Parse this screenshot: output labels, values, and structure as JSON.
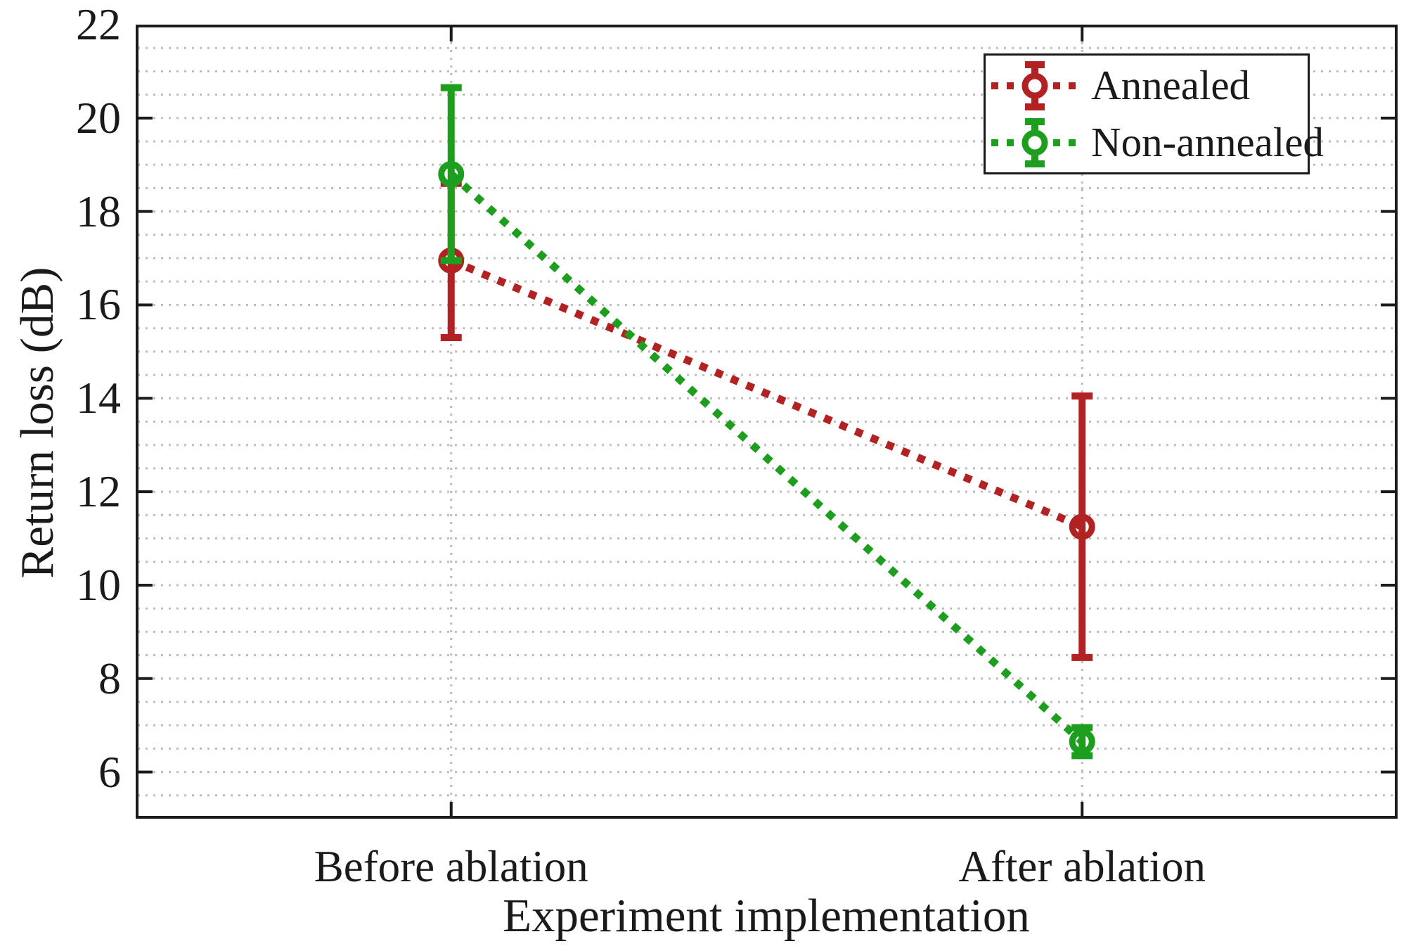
{
  "chart_data": {
    "type": "line",
    "subtype": "errorbar-line",
    "title": "",
    "xlabel": "Experiment implementation",
    "ylabel": "Return loss (dB)",
    "categories": [
      "Before ablation",
      "After ablation"
    ],
    "xlim": [
      0.5,
      2.5
    ],
    "x_positions": [
      1,
      2
    ],
    "ylim": [
      5,
      22
    ],
    "y_major_ticks": [
      6,
      8,
      10,
      12,
      14,
      16,
      18,
      20,
      22
    ],
    "y_minor_grid_start": 5.5,
    "y_minor_grid_step": 0.5,
    "y_minor_grid_end": 21.5,
    "grid": "dotted horizontal minor gridlines every 0.5 dB; dotted vertical gridlines at category positions",
    "legend_position": "top-right",
    "series": [
      {
        "name": "Annealed",
        "color": "#B22222",
        "linestyle": "dotted",
        "marker": "open-circle",
        "values": [
          16.95,
          11.25
        ],
        "err_upper": [
          18.6,
          14.05
        ],
        "err_lower": [
          15.3,
          8.45
        ]
      },
      {
        "name": "Non-annealed",
        "color": "#1E9E1E",
        "linestyle": "dotted",
        "marker": "open-circle",
        "values": [
          18.8,
          6.65
        ],
        "err_upper": [
          20.65,
          6.95
        ],
        "err_lower": [
          16.95,
          6.35
        ]
      }
    ],
    "style": {
      "grid_color": "#bdbdbd",
      "axis_color": "#1a1a1a",
      "background": "#ffffff"
    }
  }
}
